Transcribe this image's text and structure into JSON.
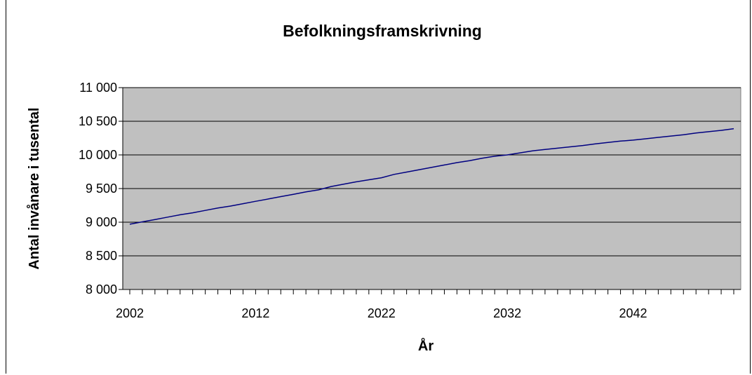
{
  "chart_data": {
    "type": "line",
    "title": "Befolkningsframskrivning",
    "xlabel": "År",
    "ylabel": "Antal invånare i tusental",
    "xlim": [
      2002,
      2050
    ],
    "ylim": [
      8000,
      11000
    ],
    "x_ticks": [
      2002,
      2012,
      2022,
      2032,
      2042
    ],
    "x_tick_labels": [
      "2002",
      "2012",
      "2022",
      "2032",
      "2042"
    ],
    "y_ticks": [
      8000,
      8500,
      9000,
      9500,
      10000,
      10500,
      11000
    ],
    "y_tick_labels": [
      "8 000",
      "8 500",
      "9 000",
      "9 500",
      "10 000",
      "10 500",
      "11 000"
    ],
    "grid": "horizontal",
    "plot_background": "#c0c0c0",
    "line_color": "#000080",
    "series": [
      {
        "x": [
          2002,
          2003,
          2004,
          2005,
          2006,
          2007,
          2008,
          2009,
          2010,
          2011,
          2012,
          2013,
          2014,
          2015,
          2016,
          2017,
          2018,
          2019,
          2020,
          2021,
          2022,
          2023,
          2024,
          2025,
          2026,
          2027,
          2028,
          2029,
          2030,
          2031,
          2032,
          2033,
          2034,
          2035,
          2036,
          2037,
          2038,
          2039,
          2040,
          2041,
          2042,
          2043,
          2044,
          2045,
          2046,
          2047,
          2048,
          2049,
          2050
        ],
        "values": [
          8970,
          9005,
          9040,
          9075,
          9110,
          9140,
          9175,
          9210,
          9240,
          9275,
          9310,
          9345,
          9380,
          9415,
          9450,
          9480,
          9530,
          9565,
          9600,
          9630,
          9660,
          9710,
          9745,
          9780,
          9815,
          9850,
          9885,
          9915,
          9950,
          9980,
          10000,
          10030,
          10060,
          10080,
          10100,
          10120,
          10140,
          10165,
          10185,
          10205,
          10220,
          10240,
          10260,
          10280,
          10300,
          10325,
          10345,
          10365,
          10390
        ]
      }
    ]
  }
}
